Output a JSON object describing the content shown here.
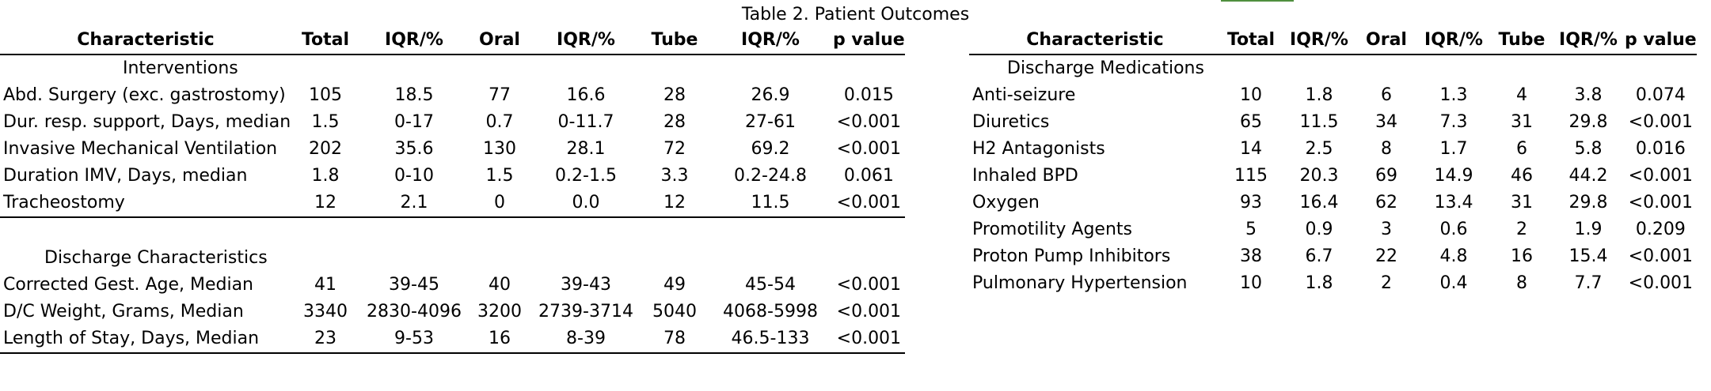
{
  "title": "Table 2. Patient Outcomes",
  "headers": [
    "Characteristic",
    "Total",
    "IQR/%",
    "Oral",
    "IQR/%",
    "Tube",
    "IQR/%",
    "p value"
  ],
  "left": {
    "section1": "Interventions",
    "rows1": [
      [
        "Abd. Surgery (exc. gastrostomy)",
        "105",
        "18.5",
        "77",
        "16.6",
        "28",
        "26.9",
        "0.015"
      ],
      [
        "Dur. resp. support, Days, median",
        "1.5",
        "0-17",
        "0.7",
        "0-11.7",
        "28",
        "27-61",
        "<0.001"
      ],
      [
        "Invasive Mechanical Ventilation",
        "202",
        "35.6",
        "130",
        "28.1",
        "72",
        "69.2",
        "<0.001"
      ],
      [
        "Duration IMV, Days, median",
        "1.8",
        "0-10",
        "1.5",
        "0.2-1.5",
        "3.3",
        "0.2-24.8",
        "0.061"
      ],
      [
        "Tracheostomy",
        "12",
        "2.1",
        "0",
        "0.0",
        "12",
        "11.5",
        "<0.001"
      ]
    ],
    "section2": "Discharge Characteristics",
    "rows2": [
      [
        "Corrected Gest. Age, Median",
        "41",
        "39-45",
        "40",
        "39-43",
        "49",
        "45-54",
        "<0.001"
      ],
      [
        "D/C Weight, Grams, Median",
        "3340",
        "2830-4096",
        "3200",
        "2739-3714",
        "5040",
        "4068-5998",
        "<0.001"
      ],
      [
        "Length of Stay, Days, Median",
        "23",
        "9-53",
        "16",
        "8-39",
        "78",
        "46.5-133",
        "<0.001"
      ]
    ]
  },
  "right": {
    "section": "Discharge Medications",
    "rows": [
      [
        "Anti-seizure",
        "10",
        "1.8",
        "6",
        "1.3",
        "4",
        "3.8",
        "0.074"
      ],
      [
        "Diuretics",
        "65",
        "11.5",
        "34",
        "7.3",
        "31",
        "29.8",
        "<0.001"
      ],
      [
        "H2 Antagonists",
        "14",
        "2.5",
        "8",
        "1.7",
        "6",
        "5.8",
        "0.016"
      ],
      [
        "Inhaled BPD",
        "115",
        "20.3",
        "69",
        "14.9",
        "46",
        "44.2",
        "<0.001"
      ],
      [
        "Oxygen",
        "93",
        "16.4",
        "62",
        "13.4",
        "31",
        "29.8",
        "<0.001"
      ],
      [
        "Promotility Agents",
        "5",
        "0.9",
        "3",
        "0.6",
        "2",
        "1.9",
        "0.209"
      ],
      [
        "Proton Pump Inhibitors",
        "38",
        "6.7",
        "22",
        "4.8",
        "16",
        "15.4",
        "<0.001"
      ],
      [
        "Pulmonary Hypertension",
        "10",
        "1.8",
        "2",
        "0.4",
        "8",
        "7.7",
        "<0.001"
      ]
    ]
  }
}
